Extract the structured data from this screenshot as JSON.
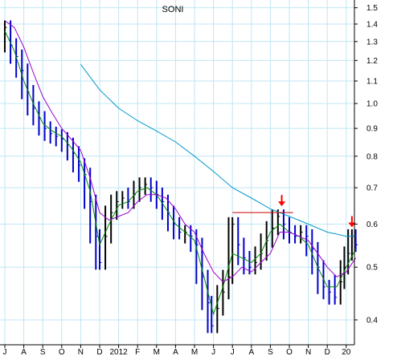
{
  "chart_data": {
    "type": "line",
    "title": "SONI",
    "xlabel": "",
    "ylabel": "",
    "y_scale": "log",
    "ylim": [
      0.36,
      1.55
    ],
    "grid": true,
    "x_ticks": [
      "J",
      "A",
      "S",
      "O",
      "N",
      "D",
      "2012",
      "F",
      "M",
      "A",
      "M",
      "J",
      "J",
      "A",
      "S",
      "O",
      "N",
      "D",
      "20"
    ],
    "y_ticks": [
      0.4,
      0.5,
      0.6,
      0.7,
      0.8,
      0.9,
      1.0,
      1.1,
      1.2,
      1.3,
      1.4,
      1.5
    ],
    "y_tick_labels": [
      "0.4",
      "0.5",
      "0.6",
      "0.7",
      "0.8",
      "0.9",
      "1.0",
      "1.1",
      "1.2",
      "1.3",
      "1.4",
      "1.5"
    ],
    "series": [
      {
        "style": "price-bars",
        "color": "#0000cc",
        "points": [
          [
            0.0,
            1.38
          ],
          [
            0.3,
            1.28
          ],
          [
            0.6,
            1.22
          ],
          [
            0.9,
            1.15
          ],
          [
            1.2,
            1.05
          ],
          [
            1.5,
            0.98
          ],
          [
            1.8,
            0.94
          ],
          [
            2.1,
            0.9
          ],
          [
            2.4,
            0.88
          ],
          [
            2.7,
            0.87
          ],
          [
            3.0,
            0.86
          ],
          [
            3.3,
            0.84
          ],
          [
            3.6,
            0.81
          ],
          [
            3.9,
            0.77
          ],
          [
            4.2,
            0.74
          ],
          [
            4.5,
            0.66
          ],
          [
            4.8,
            0.57
          ],
          [
            5.0,
            0.51
          ],
          [
            5.3,
            0.57
          ],
          [
            5.6,
            0.63
          ],
          [
            5.9,
            0.66
          ],
          [
            6.2,
            0.67
          ],
          [
            6.5,
            0.66
          ],
          [
            6.8,
            0.68
          ],
          [
            7.1,
            0.7
          ],
          [
            7.4,
            0.71
          ],
          [
            7.7,
            0.7
          ],
          [
            8.0,
            0.68
          ],
          [
            8.3,
            0.66
          ],
          [
            8.6,
            0.63
          ],
          [
            8.9,
            0.6
          ],
          [
            9.2,
            0.58
          ],
          [
            9.5,
            0.58
          ],
          [
            9.8,
            0.57
          ],
          [
            10.1,
            0.55
          ],
          [
            10.4,
            0.48
          ],
          [
            10.7,
            0.43
          ],
          [
            10.9,
            0.39
          ],
          [
            11.2,
            0.42
          ],
          [
            11.5,
            0.45
          ],
          [
            11.8,
            0.48
          ],
          [
            12.0,
            0.6
          ],
          [
            12.3,
            0.55
          ],
          [
            12.6,
            0.52
          ],
          [
            12.9,
            0.5
          ],
          [
            13.2,
            0.51
          ],
          [
            13.5,
            0.53
          ],
          [
            13.8,
            0.56
          ],
          [
            14.1,
            0.59
          ],
          [
            14.4,
            0.62
          ],
          [
            14.7,
            0.6
          ],
          [
            15.0,
            0.58
          ],
          [
            15.3,
            0.57
          ],
          [
            15.6,
            0.58
          ],
          [
            15.9,
            0.57
          ],
          [
            16.2,
            0.54
          ],
          [
            16.5,
            0.5
          ],
          [
            16.8,
            0.46
          ],
          [
            17.1,
            0.45
          ],
          [
            17.4,
            0.44
          ],
          [
            17.7,
            0.47
          ],
          [
            17.9,
            0.5
          ],
          [
            18.1,
            0.53
          ],
          [
            18.3,
            0.57
          ],
          [
            18.5,
            0.55
          ]
        ]
      },
      {
        "style": "line",
        "color": "#008800",
        "points": [
          [
            0.0,
            1.36
          ],
          [
            0.5,
            1.25
          ],
          [
            1.0,
            1.1
          ],
          [
            1.5,
            1.0
          ],
          [
            2.0,
            0.92
          ],
          [
            2.5,
            0.89
          ],
          [
            3.0,
            0.87
          ],
          [
            3.5,
            0.83
          ],
          [
            4.0,
            0.78
          ],
          [
            4.5,
            0.69
          ],
          [
            5.0,
            0.55
          ],
          [
            5.5,
            0.6
          ],
          [
            6.0,
            0.65
          ],
          [
            6.5,
            0.66
          ],
          [
            7.0,
            0.69
          ],
          [
            7.5,
            0.7
          ],
          [
            8.0,
            0.68
          ],
          [
            8.5,
            0.64
          ],
          [
            9.0,
            0.6
          ],
          [
            9.5,
            0.58
          ],
          [
            10.0,
            0.56
          ],
          [
            10.5,
            0.48
          ],
          [
            11.0,
            0.41
          ],
          [
            11.5,
            0.46
          ],
          [
            12.0,
            0.53
          ],
          [
            12.5,
            0.52
          ],
          [
            13.0,
            0.51
          ],
          [
            13.5,
            0.53
          ],
          [
            14.0,
            0.58
          ],
          [
            14.5,
            0.6
          ],
          [
            15.0,
            0.58
          ],
          [
            15.5,
            0.57
          ],
          [
            16.0,
            0.55
          ],
          [
            16.5,
            0.5
          ],
          [
            17.0,
            0.46
          ],
          [
            17.5,
            0.46
          ],
          [
            18.0,
            0.5
          ],
          [
            18.5,
            0.54
          ]
        ]
      },
      {
        "style": "line",
        "color": "#9900cc",
        "points": [
          [
            0.0,
            1.42
          ],
          [
            0.5,
            1.38
          ],
          [
            1.0,
            1.27
          ],
          [
            1.5,
            1.14
          ],
          [
            2.0,
            1.03
          ],
          [
            2.5,
            0.96
          ],
          [
            3.0,
            0.9
          ],
          [
            3.5,
            0.86
          ],
          [
            4.0,
            0.82
          ],
          [
            4.5,
            0.73
          ],
          [
            5.0,
            0.63
          ],
          [
            5.5,
            0.61
          ],
          [
            6.0,
            0.62
          ],
          [
            6.5,
            0.63
          ],
          [
            7.0,
            0.66
          ],
          [
            7.5,
            0.68
          ],
          [
            8.0,
            0.68
          ],
          [
            8.5,
            0.67
          ],
          [
            9.0,
            0.64
          ],
          [
            9.5,
            0.6
          ],
          [
            10.0,
            0.58
          ],
          [
            10.5,
            0.53
          ],
          [
            11.0,
            0.49
          ],
          [
            11.5,
            0.47
          ],
          [
            12.0,
            0.48
          ],
          [
            12.5,
            0.5
          ],
          [
            13.0,
            0.49
          ],
          [
            13.5,
            0.51
          ],
          [
            14.0,
            0.53
          ],
          [
            14.5,
            0.58
          ],
          [
            15.0,
            0.58
          ],
          [
            15.5,
            0.57
          ],
          [
            16.0,
            0.56
          ],
          [
            16.5,
            0.53
          ],
          [
            17.0,
            0.5
          ],
          [
            17.5,
            0.48
          ],
          [
            18.0,
            0.49
          ],
          [
            18.5,
            0.52
          ]
        ]
      },
      {
        "style": "line",
        "color": "#0099cc",
        "points": [
          [
            4.0,
            1.18
          ],
          [
            5.0,
            1.06
          ],
          [
            6.0,
            0.98
          ],
          [
            7.0,
            0.93
          ],
          [
            8.0,
            0.89
          ],
          [
            9.0,
            0.85
          ],
          [
            10.0,
            0.8
          ],
          [
            11.0,
            0.75
          ],
          [
            12.0,
            0.7
          ],
          [
            13.0,
            0.67
          ],
          [
            14.0,
            0.64
          ],
          [
            15.0,
            0.62
          ],
          [
            16.0,
            0.6
          ],
          [
            17.0,
            0.58
          ],
          [
            18.0,
            0.57
          ],
          [
            18.5,
            0.57
          ]
        ]
      }
    ],
    "annotations": [
      {
        "type": "horizontal-line",
        "color": "#cc0000",
        "x_start": 12.0,
        "x_end": 15.2,
        "y": 0.63
      },
      {
        "type": "arrow-down",
        "color": "#ff0000",
        "x": 14.6,
        "y": 0.645
      },
      {
        "type": "arrow-down",
        "color": "#ff0000",
        "x": 18.3,
        "y": 0.59
      }
    ]
  }
}
